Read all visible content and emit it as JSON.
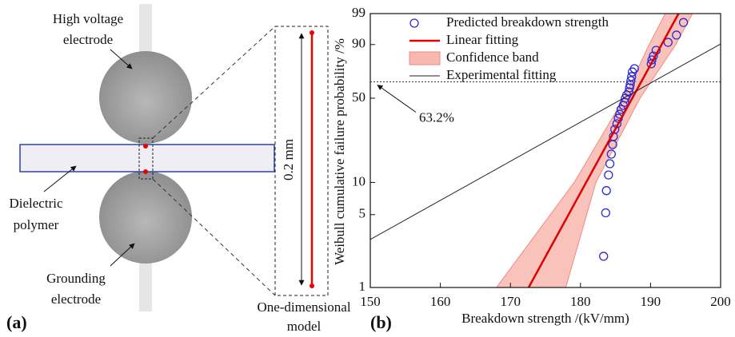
{
  "diagram": {
    "panel_label": "(a)",
    "labels": [
      {
        "lines": [
          "High voltage",
          "electrode"
        ]
      },
      {
        "lines": [
          "Dielectric",
          "polymer"
        ]
      },
      {
        "lines": [
          "Grounding",
          "electrode"
        ]
      },
      {
        "lines": [
          "One-dimensional",
          "model"
        ]
      }
    ],
    "dimension": "0.2 mm"
  },
  "chart_data": {
    "type": "scatter",
    "panel_label": "(b)",
    "x_label": "Breakdown strength /(kV/mm)",
    "y_label": "Weibull cumulative failure probability /%",
    "yscale": "weibull",
    "xlim": [
      150,
      200
    ],
    "ylim": [
      1,
      99
    ],
    "xticks": [
      150,
      160,
      170,
      180,
      190,
      200
    ],
    "yticks": [
      1,
      5,
      10,
      50,
      90,
      99
    ],
    "legend": "upper left",
    "reference_line": {
      "value": 63.2,
      "label": "63.2%"
    },
    "series": [
      {
        "name": "Predicted breakdown strength",
        "type": "scatter",
        "color": "#2a2ad0",
        "x": [
          183.3,
          183.6,
          183.7,
          184.0,
          184.2,
          184.4,
          184.6,
          184.7,
          184.9,
          185.2,
          185.4,
          185.6,
          185.8,
          186.1,
          186.3,
          186.4,
          186.6,
          186.9,
          187.0,
          187.1,
          187.2,
          187.3,
          187.4,
          187.7,
          190.1,
          190.2,
          190.4,
          190.8,
          192.5,
          193.7,
          194.7
        ],
        "values": [
          2.0,
          5.2,
          8.4,
          11.7,
          14.8,
          18.0,
          21.8,
          25.5,
          29.2,
          32.4,
          35.8,
          38.4,
          41.7,
          44.6,
          46.9,
          50.0,
          52.5,
          55.0,
          58.3,
          60.9,
          64.2,
          67.5,
          71.3,
          73.9,
          77.6,
          80.5,
          83.2,
          86.8,
          91.1,
          94.2,
          97.7
        ]
      },
      {
        "name": "Linear fitting",
        "type": "line",
        "color": "#e00000",
        "x": [
          172.6,
          194.0
        ],
        "values": [
          1,
          99
        ]
      },
      {
        "name": "Confidence band",
        "type": "band",
        "color": "#f8b8b0",
        "values": [
          1,
          10,
          50,
          90,
          99
        ],
        "x_low": [
          168.0,
          179.1,
          186.2,
          189.8,
          192.1
        ],
        "x_high": [
          177.9,
          182.2,
          188.5,
          193.6,
          196.0
        ]
      },
      {
        "name": "Experimental fitting",
        "type": "line",
        "color": "#222222",
        "x": [
          150,
          200
        ],
        "values": [
          2.9,
          90.3
        ]
      }
    ]
  }
}
